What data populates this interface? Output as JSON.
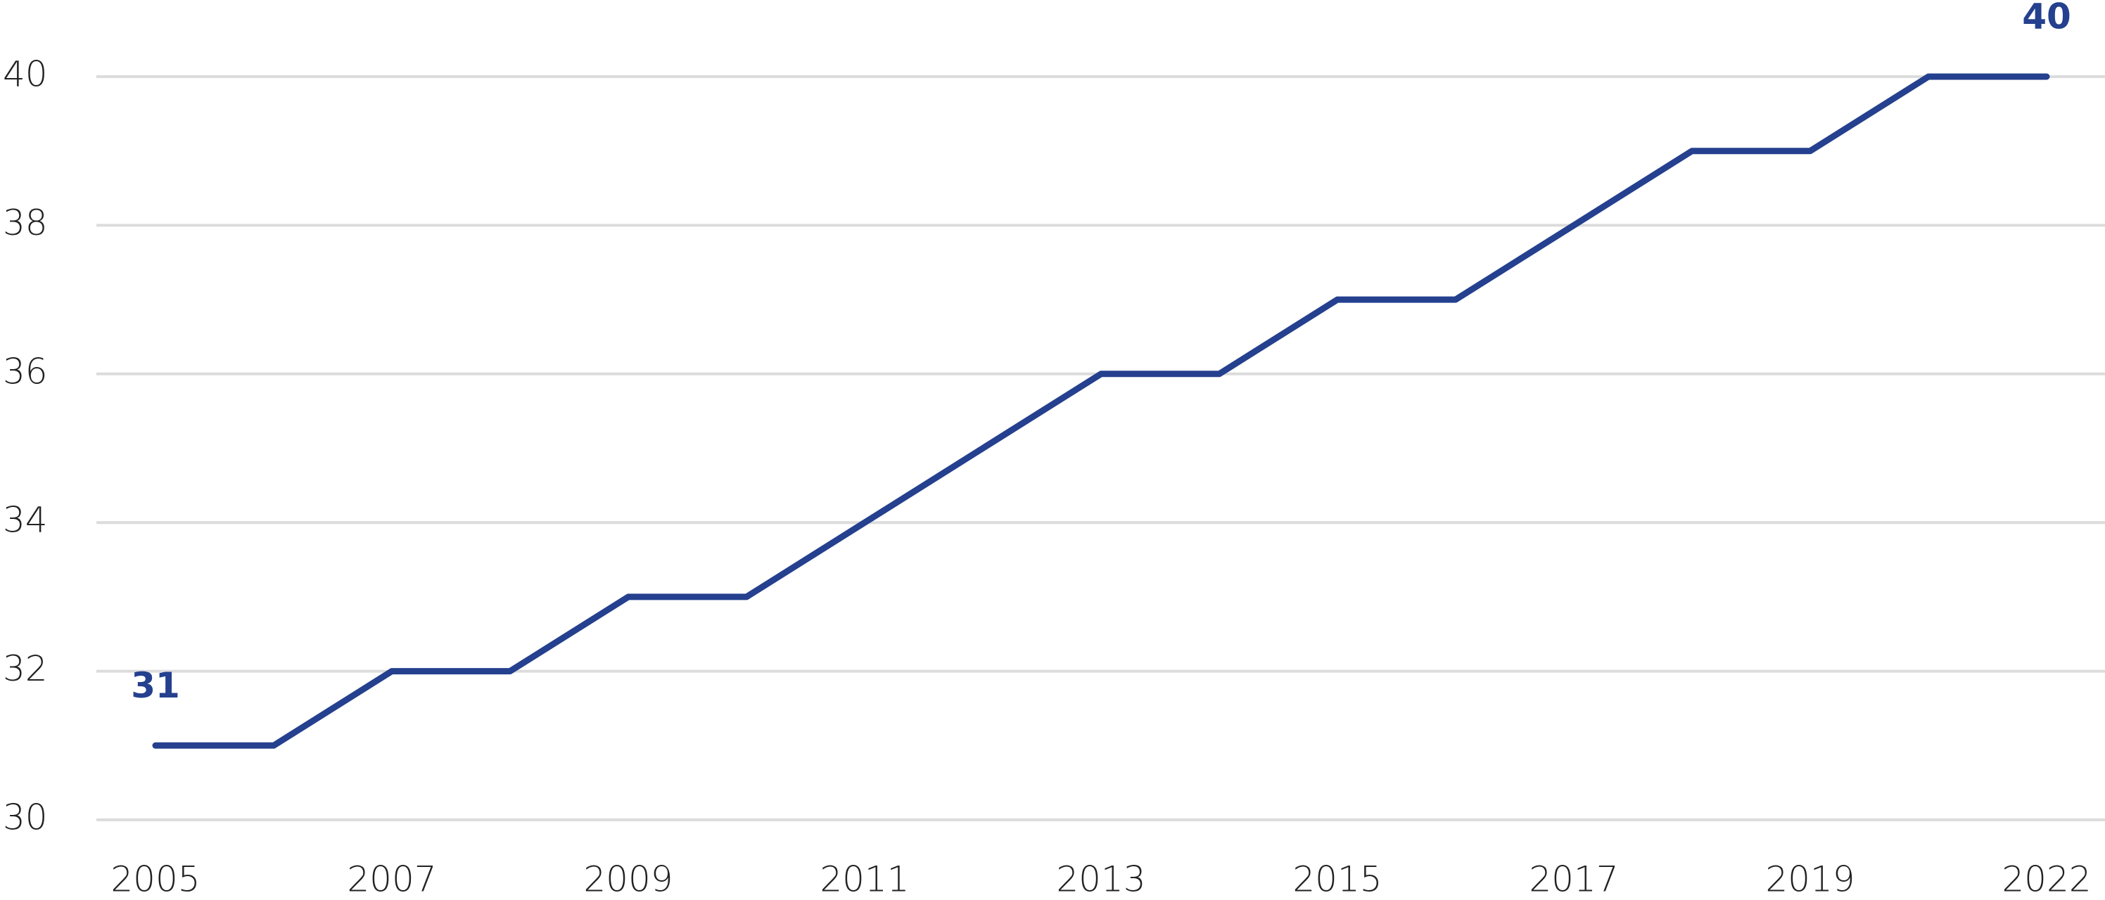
{
  "chart_data": {
    "type": "line",
    "categories": [
      "2005",
      null,
      "2007",
      null,
      "2009",
      null,
      "2011",
      null,
      "2013",
      null,
      "2015",
      null,
      "2017",
      null,
      "2019",
      null,
      "2022"
    ],
    "series": [
      {
        "color": "#24408e",
        "values": [
          31,
          31,
          32,
          32,
          33,
          33,
          34,
          35,
          36,
          36,
          37,
          37,
          38,
          39,
          39,
          40,
          40
        ]
      }
    ],
    "ylim": [
      30,
      40
    ],
    "yticks": [
      30,
      32,
      34,
      36,
      38,
      40
    ],
    "grid": true
  }
}
